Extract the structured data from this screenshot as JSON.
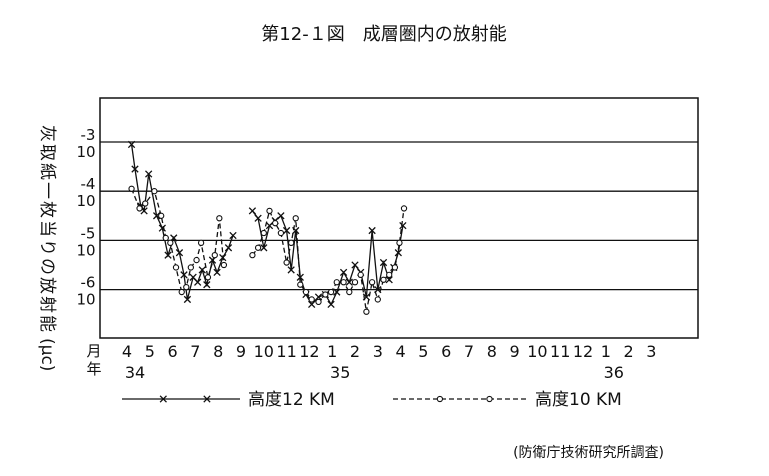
{
  "chart_data": {
    "type": "line",
    "title": "第12-１図　成層圏内の放射能",
    "ylabel": "灰取紙一枚当りの放射能",
    "ylabel_unit": "(μc)",
    "y_scale": "log",
    "y_ticks": [
      {
        "base": "10",
        "exp": "-3"
      },
      {
        "base": "10",
        "exp": "-4"
      },
      {
        "base": "10",
        "exp": "-5"
      },
      {
        "base": "10",
        "exp": "-6"
      }
    ],
    "ylim": [
      -6.9,
      -2.5
    ],
    "x_row_month_label": "月",
    "x_row_year_label": "年",
    "x_month_labels": [
      "4",
      "5",
      "6",
      "7",
      "8",
      "9",
      "10",
      "11",
      "12",
      "1",
      "2",
      "3",
      "4",
      "5",
      "6",
      "7",
      "8",
      "9",
      "10",
      "11",
      "12",
      "1",
      "2",
      "3"
    ],
    "x_year_labels": [
      {
        "label": "34",
        "month_index": 0
      },
      {
        "label": "35",
        "month_index": 9
      },
      {
        "label": "36",
        "month_index": 21
      }
    ],
    "series": [
      {
        "name": "高度12 KM",
        "marker": "x",
        "line_style": "solid",
        "segments": [
          [
            [
              0.2,
              -3.05
            ],
            [
              0.35,
              -3.55
            ],
            [
              0.6,
              -4.3
            ],
            [
              0.75,
              -4.4
            ],
            [
              0.95,
              -3.65
            ],
            [
              1.3,
              -4.5
            ],
            [
              1.55,
              -4.75
            ],
            [
              1.8,
              -5.3
            ],
            [
              2.05,
              -4.95
            ],
            [
              2.3,
              -5.25
            ],
            [
              2.5,
              -5.7
            ],
            [
              2.65,
              -6.2
            ],
            [
              2.9,
              -5.75
            ],
            [
              3.1,
              -5.85
            ],
            [
              3.3,
              -5.6
            ],
            [
              3.5,
              -5.9
            ],
            [
              3.75,
              -5.4
            ],
            [
              3.95,
              -5.65
            ],
            [
              4.2,
              -5.35
            ],
            [
              4.45,
              -5.15
            ],
            [
              4.65,
              -4.9
            ]
          ],
          [
            [
              5.5,
              -4.4
            ],
            [
              5.75,
              -4.55
            ],
            [
              6.0,
              -5.15
            ],
            [
              6.25,
              -4.7
            ],
            [
              6.5,
              -4.6
            ],
            [
              6.75,
              -4.5
            ],
            [
              7.0,
              -4.8
            ],
            [
              7.2,
              -5.6
            ],
            [
              7.4,
              -4.8
            ],
            [
              7.6,
              -5.75
            ],
            [
              7.85,
              -6.1
            ],
            [
              8.1,
              -6.3
            ],
            [
              8.4,
              -6.15
            ],
            [
              8.7,
              -6.1
            ],
            [
              8.95,
              -6.3
            ],
            [
              9.2,
              -6.05
            ],
            [
              9.5,
              -5.65
            ],
            [
              9.75,
              -5.85
            ],
            [
              10.0,
              -5.5
            ],
            [
              10.25,
              -5.65
            ],
            [
              10.5,
              -6.15
            ],
            [
              10.75,
              -4.8
            ],
            [
              11.0,
              -6.0
            ],
            [
              11.25,
              -5.45
            ],
            [
              11.5,
              -5.8
            ],
            [
              11.7,
              -5.55
            ],
            [
              11.9,
              -5.25
            ],
            [
              12.1,
              -4.7
            ]
          ]
        ]
      },
      {
        "name": "高度10 KM",
        "marker": "o",
        "line_style": "dashed",
        "segments": [
          [
            [
              0.2,
              -3.95
            ],
            [
              0.55,
              -4.35
            ],
            [
              0.8,
              -4.25
            ],
            [
              1.2,
              -4.0
            ],
            [
              1.5,
              -4.5
            ],
            [
              1.7,
              -4.95
            ],
            [
              1.9,
              -5.05
            ],
            [
              2.15,
              -5.55
            ],
            [
              2.4,
              -6.05
            ],
            [
              2.6,
              -5.95
            ],
            [
              2.8,
              -5.55
            ],
            [
              3.05,
              -5.4
            ],
            [
              3.25,
              -5.05
            ],
            [
              3.55,
              -5.75
            ],
            [
              3.85,
              -5.3
            ],
            [
              4.05,
              -4.55
            ],
            [
              4.25,
              -5.5
            ]
          ],
          [
            [
              5.5,
              -5.3
            ],
            [
              5.75,
              -5.15
            ],
            [
              6.0,
              -4.85
            ],
            [
              6.25,
              -4.4
            ],
            [
              6.5,
              -4.65
            ],
            [
              6.75,
              -4.85
            ],
            [
              7.0,
              -5.45
            ],
            [
              7.2,
              -5.05
            ],
            [
              7.4,
              -4.55
            ],
            [
              7.6,
              -5.9
            ],
            [
              7.85,
              -6.05
            ],
            [
              8.1,
              -6.2
            ],
            [
              8.4,
              -6.25
            ],
            [
              8.7,
              -6.1
            ],
            [
              8.95,
              -6.05
            ],
            [
              9.2,
              -5.85
            ],
            [
              9.5,
              -5.85
            ],
            [
              9.75,
              -6.05
            ],
            [
              10.0,
              -5.85
            ],
            [
              10.25,
              -5.7
            ],
            [
              10.5,
              -6.45
            ],
            [
              10.75,
              -5.85
            ],
            [
              11.0,
              -6.2
            ],
            [
              11.25,
              -5.8
            ],
            [
              11.5,
              -5.7
            ],
            [
              11.75,
              -5.55
            ],
            [
              11.95,
              -5.05
            ],
            [
              12.15,
              -4.35
            ]
          ]
        ]
      }
    ],
    "legend": [
      {
        "label": "高度12 KM",
        "marker": "x",
        "line_style": "solid"
      },
      {
        "label": "高度10 KM",
        "marker": "o",
        "line_style": "dashed"
      }
    ],
    "legend_position": "bottom",
    "grid": "horizontal lines at y ticks",
    "source": "(防衛庁技術研究所調査)"
  }
}
